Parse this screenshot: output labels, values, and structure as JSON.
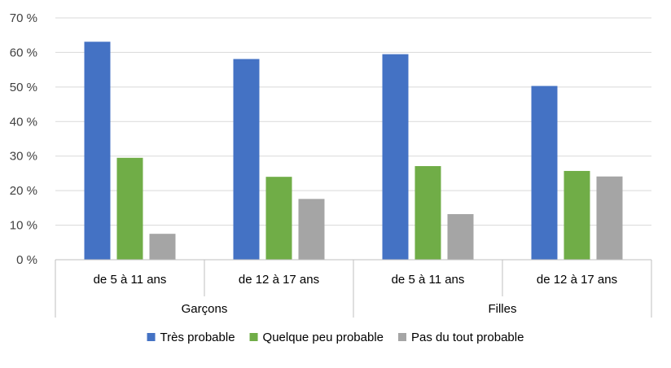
{
  "chart_data": {
    "type": "bar",
    "ylim": [
      0,
      70
    ],
    "y_ticks": [
      "0 %",
      "10 %",
      "20 %",
      "30 %",
      "40 %",
      "50 %",
      "60 %",
      "70 %"
    ],
    "groups": [
      {
        "label": "Garçons",
        "categories": [
          "de 5 à 11 ans",
          "de 12 à 17 ans"
        ]
      },
      {
        "label": "Filles",
        "categories": [
          "de 5 à 11 ans",
          "de 12 à 17 ans"
        ]
      }
    ],
    "categories": [
      "de 5 à 11 ans",
      "de 12 à 17 ans",
      "de 5 à 11 ans",
      "de 12 à 17 ans"
    ],
    "series": [
      {
        "name": "Très probable",
        "color": "#4472C4",
        "values": [
          63.1,
          58.1,
          59.5,
          50.3
        ]
      },
      {
        "name": "Quelque peu probable",
        "color": "#70AD47",
        "values": [
          29.5,
          24.0,
          27.1,
          25.7
        ]
      },
      {
        "name": "Pas du tout probable",
        "color": "#A5A5A5",
        "values": [
          7.5,
          17.6,
          13.2,
          24.1
        ]
      }
    ],
    "grid": true,
    "legend_position": "bottom"
  }
}
